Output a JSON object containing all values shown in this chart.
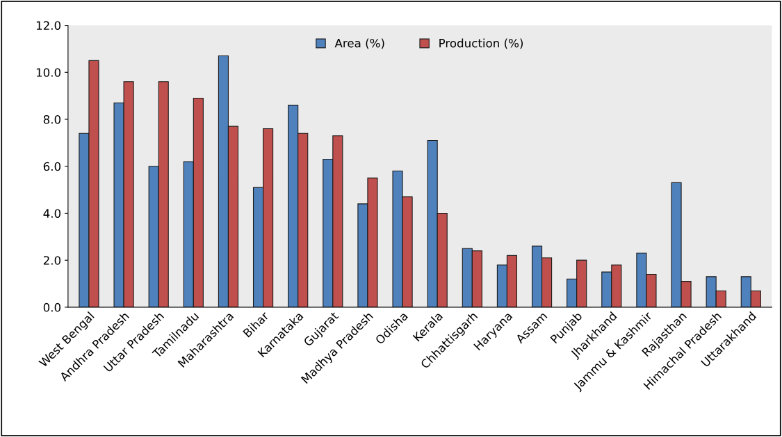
{
  "chart_data": {
    "type": "bar",
    "categories": [
      "West Bengal",
      "Andhra Pradesh",
      "Uttar Pradesh",
      "Tamilnadu",
      "Maharashtra",
      "Bihar",
      "Karnataka",
      "Gujarat",
      "Madhya Pradesh",
      "Odisha",
      "Kerala",
      "Chhattisgarh",
      "Haryana",
      "Assam",
      "Punjab",
      "Jharkhand",
      "Jammu & Kashmir",
      "Rajasthan",
      "Himachal Pradesh",
      "Uttarakhand"
    ],
    "series": [
      {
        "name": "Area (%)",
        "color": "#4f81bd",
        "values": [
          7.4,
          8.7,
          6.0,
          6.2,
          10.7,
          5.1,
          8.6,
          6.3,
          4.4,
          5.8,
          7.1,
          2.5,
          1.8,
          2.6,
          1.2,
          1.5,
          2.3,
          5.3,
          1.3,
          1.3
        ]
      },
      {
        "name": "Production (%)",
        "color": "#c0504d",
        "values": [
          10.5,
          9.6,
          9.6,
          8.9,
          7.7,
          7.6,
          7.4,
          7.3,
          5.5,
          4.7,
          4.0,
          2.4,
          2.2,
          2.1,
          2.0,
          1.8,
          1.4,
          1.1,
          0.7,
          0.7
        ]
      }
    ],
    "ylim": [
      0,
      12
    ],
    "yticks": [
      {
        "value": 0,
        "label": "0.0"
      },
      {
        "value": 2,
        "label": "2.0"
      },
      {
        "value": 4,
        "label": "4.0"
      },
      {
        "value": 6,
        "label": "6.0"
      },
      {
        "value": 8,
        "label": "8.0"
      },
      {
        "value": 10,
        "label": "10.0"
      },
      {
        "value": 12,
        "label": "12.0"
      }
    ],
    "grid": false,
    "legend": "top"
  }
}
